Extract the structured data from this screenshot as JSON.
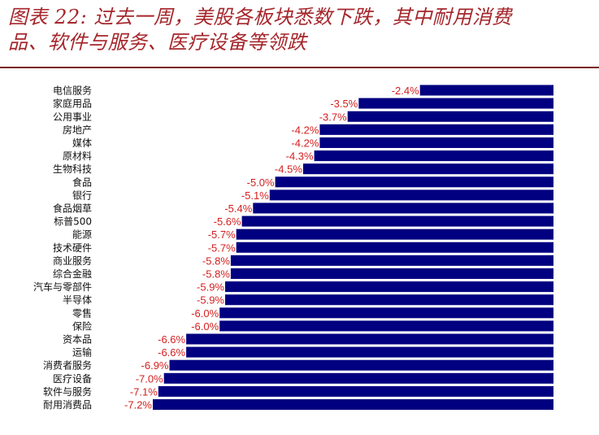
{
  "title": {
    "line1": "图表 22: 过去一周，美股各板块悉数下跌，其中耐用消费",
    "line2": "品、软件与服务、医疗设备等领跌"
  },
  "colors": {
    "bar": "#000080",
    "value_label": "#d41f1f",
    "title": "#a5262b",
    "rule": "#7a1f1f"
  },
  "chart_data": {
    "type": "bar",
    "orientation": "horizontal",
    "categories": [
      "电信服务",
      "家庭用品",
      "公用事业",
      "房地产",
      "媒体",
      "原材料",
      "生物科技",
      "食品",
      "银行",
      "食品烟草",
      "标普500",
      "能源",
      "技术硬件",
      "商业服务",
      "综合金融",
      "汽车与零部件",
      "半导体",
      "零售",
      "保险",
      "资本品",
      "运输",
      "消费者服务",
      "医疗设备",
      "软件与服务",
      "耐用消费品"
    ],
    "values": [
      -2.4,
      -3.5,
      -3.7,
      -4.2,
      -4.2,
      -4.3,
      -4.5,
      -5.0,
      -5.1,
      -5.4,
      -5.6,
      -5.7,
      -5.7,
      -5.8,
      -5.8,
      -5.9,
      -5.9,
      -6.0,
      -6.0,
      -6.6,
      -6.6,
      -6.9,
      -7.0,
      -7.1,
      -7.2
    ],
    "value_labels": [
      "-2.4%",
      "-3.5%",
      "-3.7%",
      "-4.2%",
      "-4.2%",
      "-4.3%",
      "-4.5%",
      "-5.0%",
      "-5.1%",
      "-5.4%",
      "-5.6%",
      "-5.7%",
      "-5.7%",
      "-5.8%",
      "-5.8%",
      "-5.9%",
      "-5.9%",
      "-6.0%",
      "-6.0%",
      "-6.6%",
      "-6.6%",
      "-6.9%",
      "-7.0%",
      "-7.1%",
      "-7.2%"
    ],
    "unit": "%",
    "xlim": [
      -7.2,
      0
    ],
    "grid": false
  }
}
